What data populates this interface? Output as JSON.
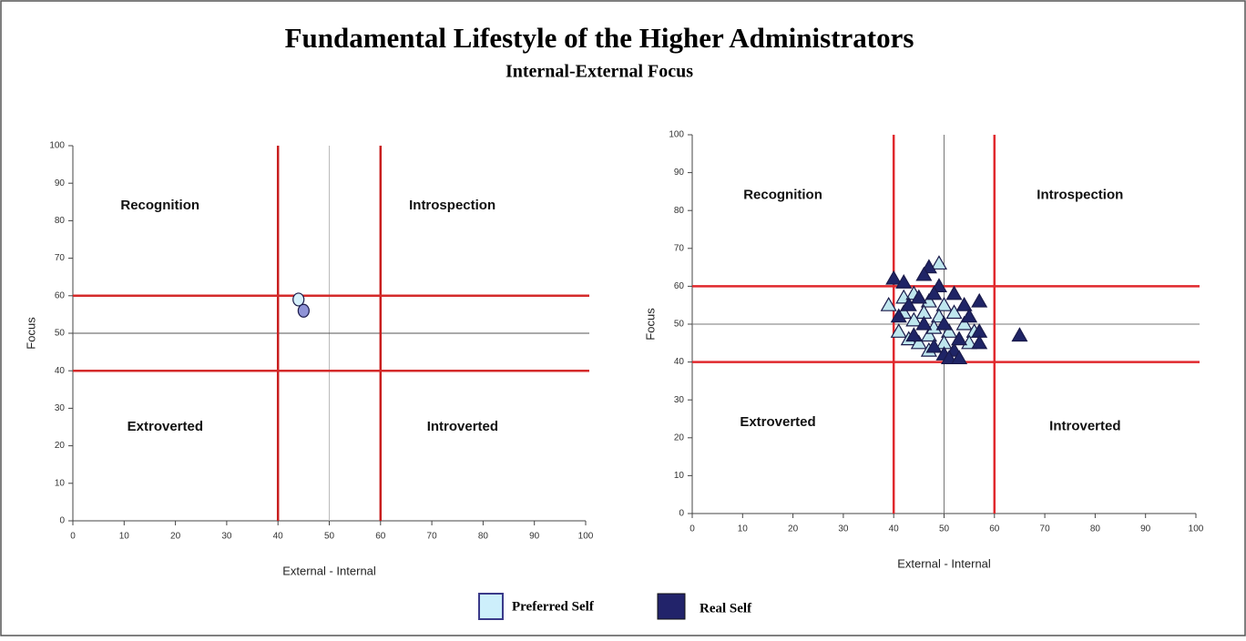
{
  "title": "Fundamental Lifestyle of the Higher Administrators",
  "subtitle": "Internal-External Focus",
  "chart_data": [
    {
      "type": "scatter",
      "xlabel": "External - Internal",
      "ylabel": "Focus",
      "xlim": [
        0,
        100
      ],
      "ylim": [
        0,
        100
      ],
      "xticks": [
        0,
        10,
        20,
        30,
        40,
        50,
        60,
        70,
        80,
        90,
        100
      ],
      "yticks": [
        0,
        10,
        20,
        30,
        40,
        50,
        60,
        70,
        80,
        90,
        100
      ],
      "ref_lines": [
        {
          "axis": "x",
          "value": 50,
          "color": "#bbbbbb"
        },
        {
          "axis": "y",
          "value": 50,
          "color": "#555555"
        },
        {
          "axis": "x",
          "value": 40,
          "color": "#c81e1e"
        },
        {
          "axis": "x",
          "value": 60,
          "color": "#c81e1e"
        },
        {
          "axis": "y",
          "value": 40,
          "color": "#d42a2a"
        },
        {
          "axis": "y",
          "value": 60,
          "color": "#d42a2a"
        }
      ],
      "annotations": [
        {
          "text": "Recognition",
          "x": 17,
          "y": 84
        },
        {
          "text": "Introspection",
          "x": 74,
          "y": 84
        },
        {
          "text": "Extroverted",
          "x": 18,
          "y": 25
        },
        {
          "text": "Introverted",
          "x": 76,
          "y": 25
        }
      ],
      "series": [
        {
          "name": "Preferred Self",
          "color": "#d6f0fb",
          "marker": "circle",
          "x": [
            44
          ],
          "y": [
            59
          ]
        },
        {
          "name": "Real Self",
          "color": "#8f93d6",
          "marker": "circle",
          "x": [
            45
          ],
          "y": [
            56
          ]
        }
      ]
    },
    {
      "type": "scatter",
      "xlabel": "External - Internal",
      "ylabel": "Focus",
      "xlim": [
        0,
        100
      ],
      "ylim": [
        0,
        100
      ],
      "xticks": [
        0,
        10,
        20,
        30,
        40,
        50,
        60,
        70,
        80,
        90,
        100
      ],
      "yticks": [
        0,
        10,
        20,
        30,
        40,
        50,
        60,
        70,
        80,
        90,
        100
      ],
      "ref_lines": [
        {
          "axis": "x",
          "value": 50,
          "color": "#777777"
        },
        {
          "axis": "y",
          "value": 50,
          "color": "#777777"
        },
        {
          "axis": "x",
          "value": 40,
          "color": "#e0282d"
        },
        {
          "axis": "x",
          "value": 60,
          "color": "#e0282d"
        },
        {
          "axis": "y",
          "value": 40,
          "color": "#e0282d"
        },
        {
          "axis": "y",
          "value": 60,
          "color": "#e0282d"
        }
      ],
      "annotations": [
        {
          "text": "Recognition",
          "x": 18,
          "y": 84
        },
        {
          "text": "Introspection",
          "x": 77,
          "y": 84
        },
        {
          "text": "Extroverted",
          "x": 17,
          "y": 24
        },
        {
          "text": "Introverted",
          "x": 78,
          "y": 23
        }
      ],
      "series": [
        {
          "name": "Preferred Self",
          "color": "#bfe6ee",
          "marker": "triangle",
          "x": [
            39,
            49,
            42,
            44,
            47,
            50,
            41,
            43,
            45,
            47,
            49,
            46,
            48,
            51,
            52,
            54,
            56,
            44,
            42,
            47,
            55,
            50
          ],
          "y": [
            55,
            66,
            57,
            58,
            56,
            55,
            48,
            46,
            45,
            47,
            52,
            53,
            49,
            48,
            53,
            50,
            48,
            51,
            53,
            43,
            45,
            45
          ]
        },
        {
          "name": "Real Self",
          "color": "#1f2466",
          "marker": "triangle",
          "x": [
            40,
            42,
            47,
            46,
            49,
            52,
            57,
            54,
            65,
            57,
            57,
            50,
            52,
            48,
            44,
            41,
            43,
            46,
            50,
            53,
            48,
            45,
            55,
            51,
            53
          ],
          "y": [
            62,
            61,
            65,
            63,
            60,
            58,
            56,
            55,
            47,
            48,
            45,
            42,
            43,
            44,
            47,
            52,
            55,
            50,
            50,
            46,
            58,
            57,
            52,
            41,
            41
          ]
        }
      ]
    }
  ]
}
